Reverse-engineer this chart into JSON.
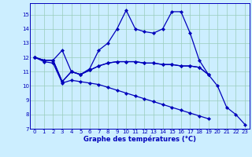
{
  "title": "Graphe des températures (°C)",
  "bg_color": "#cceeff",
  "line_color": "#0000bb",
  "grid_color": "#99ccbb",
  "xlim": [
    -0.5,
    23.5
  ],
  "ylim": [
    7,
    15.8
  ],
  "xticks": [
    0,
    1,
    2,
    3,
    4,
    5,
    6,
    7,
    8,
    9,
    10,
    11,
    12,
    13,
    14,
    15,
    16,
    17,
    18,
    19,
    20,
    21,
    22,
    23
  ],
  "yticks": [
    7,
    8,
    9,
    10,
    11,
    12,
    13,
    14,
    15
  ],
  "series": [
    [
      12,
      11.8,
      11.8,
      12.5,
      11.0,
      10.8,
      11.2,
      12.5,
      13.0,
      14.0,
      15.3,
      14.0,
      13.8,
      13.7,
      14.0,
      15.2,
      15.2,
      13.7,
      11.8,
      10.8,
      10.0,
      8.5,
      8.0,
      7.3
    ],
    [
      12,
      11.8,
      11.8,
      10.3,
      11.0,
      10.8,
      11.1,
      11.4,
      11.6,
      11.7,
      11.7,
      11.7,
      11.6,
      11.6,
      11.5,
      11.5,
      11.4,
      11.4,
      11.3,
      10.8,
      null,
      null,
      null,
      null
    ],
    [
      12,
      11.8,
      11.8,
      10.3,
      11.0,
      10.8,
      11.1,
      11.4,
      11.6,
      11.7,
      11.7,
      11.7,
      11.6,
      11.6,
      11.5,
      11.5,
      11.4,
      11.4,
      11.3,
      10.8,
      null,
      null,
      null,
      null
    ],
    [
      12,
      11.7,
      11.6,
      10.2,
      10.4,
      10.3,
      10.2,
      10.1,
      9.9,
      9.7,
      9.5,
      9.3,
      9.1,
      8.9,
      8.7,
      8.5,
      8.3,
      8.1,
      7.9,
      7.7,
      null,
      null,
      null,
      null
    ]
  ],
  "marker": "D",
  "markersize": 2.2,
  "linewidth": 0.9,
  "tick_fontsize": 5.0,
  "xlabel_fontsize": 6.0
}
